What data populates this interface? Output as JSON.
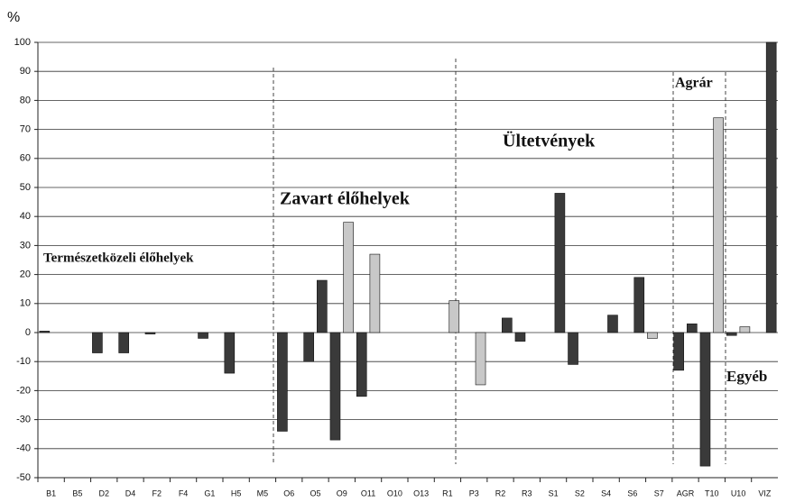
{
  "chart_data": {
    "type": "bar",
    "y_label": "%",
    "categories": [
      "B1",
      "B5",
      "D2",
      "D4",
      "F2",
      "F4",
      "G1",
      "H5",
      "M5",
      "O6",
      "O5",
      "O9",
      "O11",
      "O10",
      "O13",
      "R1",
      "P3",
      "R2",
      "R3",
      "S1",
      "S2",
      "S4",
      "S6",
      "S7",
      "AGR",
      "T10",
      "U10",
      "VIZ"
    ],
    "series": [
      {
        "values": [
          0.5,
          0,
          -7,
          -7,
          -0.5,
          0,
          -2,
          -14,
          0,
          -34,
          -10,
          -37,
          -22,
          0,
          0,
          0,
          0,
          0,
          -3,
          0,
          -11,
          0,
          0,
          -2,
          -13,
          -46,
          -1,
          0
        ],
        "colors": [
          "#3a3a3a",
          "#3a3a3a",
          "#3a3a3a",
          "#3a3a3a",
          "#3a3a3a",
          "#3a3a3a",
          "#3a3a3a",
          "#3a3a3a",
          "#3a3a3a",
          "#3a3a3a",
          "#3a3a3a",
          "#3a3a3a",
          "#3a3a3a",
          "#3a3a3a",
          "#3a3a3a",
          "#3a3a3a",
          "#3a3a3a",
          "#3a3a3a",
          "#3a3a3a",
          "#3a3a3a",
          "#3a3a3a",
          "#3a3a3a",
          "#3a3a3a",
          "#c8c8c8",
          "#3a3a3a",
          "#3a3a3a",
          "#3a3a3a",
          "#3a3a3a"
        ]
      },
      {
        "values": [
          0,
          0,
          0,
          0,
          0,
          0,
          0,
          0,
          0,
          0,
          18,
          38,
          27,
          0,
          0,
          11,
          -18,
          5,
          0,
          48,
          0,
          6,
          19,
          0,
          3,
          74,
          2,
          100
        ],
        "colors": [
          "#3a3a3a",
          "#3a3a3a",
          "#3a3a3a",
          "#3a3a3a",
          "#3a3a3a",
          "#3a3a3a",
          "#3a3a3a",
          "#3a3a3a",
          "#3a3a3a",
          "#3a3a3a",
          "#3a3a3a",
          "#c8c8c8",
          "#c8c8c8",
          "#3a3a3a",
          "#3a3a3a",
          "#c8c8c8",
          "#c8c8c8",
          "#3a3a3a",
          "#3a3a3a",
          "#3a3a3a",
          "#3a3a3a",
          "#3a3a3a",
          "#3a3a3a",
          "#3a3a3a",
          "#3a3a3a",
          "#c8c8c8",
          "#c8c8c8",
          "#3a3a3a"
        ]
      }
    ],
    "ylim": [
      -50,
      100
    ],
    "yticks": [
      -50,
      -40,
      -30,
      -20,
      -10,
      0,
      10,
      20,
      30,
      40,
      50,
      60,
      70,
      80,
      90,
      100
    ],
    "grid": true,
    "annotations": [
      "Természetközeli élőhelyek",
      "Zavart élőhelyek",
      "Ültetvények",
      "Agrár",
      "Egyéb"
    ]
  }
}
